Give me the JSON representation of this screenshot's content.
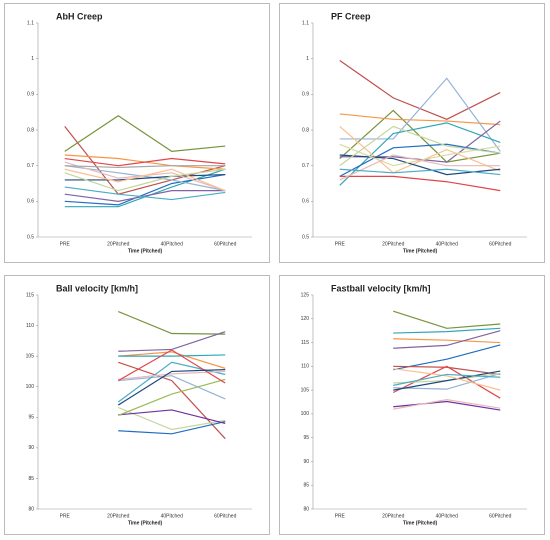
{
  "chart_data": [
    {
      "type": "line",
      "title": "AbH Creep",
      "x_label": "Time (Pitched)",
      "categories": [
        "PRE",
        "20Pitched",
        "40Pitched",
        "60Pitched"
      ],
      "ylim": [
        0.5,
        1.1
      ],
      "yticks": [
        0.5,
        0.6,
        0.7,
        0.8,
        0.9,
        1,
        1.1
      ],
      "grid": false,
      "series": [
        {
          "color": "#C0504D",
          "values": [
            0.81,
            0.62,
            0.66,
            0.7
          ]
        },
        {
          "color": "#77933C",
          "values": [
            0.74,
            0.84,
            0.74,
            0.755
          ]
        },
        {
          "color": "#F79646",
          "values": [
            0.73,
            0.72,
            0.7,
            0.69
          ]
        },
        {
          "color": "#E0464A",
          "values": [
            0.72,
            0.7,
            0.72,
            0.705
          ]
        },
        {
          "color": "#31A6B8",
          "values": [
            0.585,
            0.585,
            0.64,
            0.69
          ]
        },
        {
          "color": "#1F6FBF",
          "values": [
            0.6,
            0.59,
            0.65,
            0.675
          ]
        },
        {
          "color": "#8064A2",
          "values": [
            0.62,
            0.6,
            0.63,
            0.63
          ]
        },
        {
          "color": "#4BACC6",
          "values": [
            0.64,
            0.62,
            0.605,
            0.625
          ]
        },
        {
          "color": "#95B3D7",
          "values": [
            0.7,
            0.68,
            0.66,
            0.63
          ]
        },
        {
          "color": "#1F497D",
          "values": [
            0.66,
            0.66,
            0.67,
            0.675
          ]
        },
        {
          "color": "#E6B9B8",
          "values": [
            0.71,
            0.665,
            0.68,
            0.63
          ]
        },
        {
          "color": "#C3D69B",
          "values": [
            0.68,
            0.63,
            0.67,
            0.69
          ]
        },
        {
          "color": "#FAC090",
          "values": [
            0.69,
            0.655,
            0.69,
            0.63
          ]
        },
        {
          "color": "#A6A6A6",
          "values": [
            0.7,
            0.695,
            0.7,
            0.7
          ]
        }
      ]
    },
    {
      "type": "line",
      "title": "PF Creep",
      "x_label": "Time (Pitched)",
      "categories": [
        "PRE",
        "20Pitched",
        "40Pitched",
        "60Pitched"
      ],
      "ylim": [
        0.5,
        1.1
      ],
      "yticks": [
        0.5,
        0.6,
        0.7,
        0.8,
        0.9,
        1,
        1.1
      ],
      "grid": false,
      "series": [
        {
          "color": "#C0504D",
          "values": [
            0.995,
            0.89,
            0.83,
            0.905
          ]
        },
        {
          "color": "#77933C",
          "values": [
            0.72,
            0.855,
            0.71,
            0.735
          ]
        },
        {
          "color": "#F79646",
          "values": [
            0.845,
            0.83,
            0.825,
            0.815
          ]
        },
        {
          "color": "#95B3D7",
          "values": [
            0.775,
            0.775,
            0.945,
            0.74
          ]
        },
        {
          "color": "#31A6B8",
          "values": [
            0.645,
            0.79,
            0.82,
            0.765
          ]
        },
        {
          "color": "#1F6FBF",
          "values": [
            0.67,
            0.75,
            0.76,
            0.735
          ]
        },
        {
          "color": "#8064A2",
          "values": [
            0.725,
            0.725,
            0.71,
            0.825
          ]
        },
        {
          "color": "#FAC090",
          "values": [
            0.81,
            0.68,
            0.745,
            0.685
          ]
        },
        {
          "color": "#E0464A",
          "values": [
            0.67,
            0.67,
            0.655,
            0.63
          ]
        },
        {
          "color": "#1F497D",
          "values": [
            0.73,
            0.72,
            0.675,
            0.69
          ]
        },
        {
          "color": "#D9D9A0",
          "values": [
            0.76,
            0.7,
            0.73,
            0.755
          ]
        },
        {
          "color": "#E6B9B8",
          "values": [
            0.66,
            0.73,
            0.7,
            0.7
          ]
        },
        {
          "color": "#4BACC6",
          "values": [
            0.69,
            0.68,
            0.69,
            0.675
          ]
        },
        {
          "color": "#C3D69B",
          "values": [
            0.7,
            0.81,
            0.755,
            0.735
          ]
        }
      ]
    },
    {
      "type": "line",
      "title": "Ball velocity [km/h]",
      "x_label": "Time (Pitched)",
      "categories": [
        "PRE",
        "20Pitched",
        "40Pitched",
        "60Pitched"
      ],
      "ylim": [
        80,
        115
      ],
      "yticks": [
        80,
        85,
        90,
        95,
        100,
        105,
        110,
        115
      ],
      "grid": false,
      "series": [
        {
          "color": "#77933C",
          "values": [
            null,
            112.3,
            108.7,
            108.6
          ]
        },
        {
          "color": "#8064A2",
          "values": [
            null,
            105.8,
            106.1,
            109
          ]
        },
        {
          "color": "#F79646",
          "values": [
            null,
            105,
            105.7,
            103
          ]
        },
        {
          "color": "#C0504D",
          "values": [
            null,
            104,
            101,
            91.5
          ]
        },
        {
          "color": "#31A6B8",
          "values": [
            null,
            105,
            105,
            105.2
          ]
        },
        {
          "color": "#95B3D7",
          "values": [
            null,
            101,
            101.8,
            98
          ]
        },
        {
          "color": "#C3D69B",
          "values": [
            null,
            96.6,
            93,
            94.5
          ]
        },
        {
          "color": "#1F6FBF",
          "values": [
            null,
            92.8,
            92.3,
            94.3
          ]
        },
        {
          "color": "#7030A0",
          "values": [
            null,
            95.4,
            96.2,
            94
          ]
        },
        {
          "color": "#4BACC6",
          "values": [
            null,
            97.5,
            104,
            102
          ]
        },
        {
          "color": "#9BBB59",
          "values": [
            null,
            95.3,
            98.8,
            101.2
          ]
        },
        {
          "color": "#E6B9B8",
          "values": [
            null,
            101.2,
            102.1,
            102.5
          ]
        },
        {
          "color": "#E0464A",
          "values": [
            null,
            101,
            106,
            100.6
          ]
        },
        {
          "color": "#1F497D",
          "values": [
            null,
            97,
            102.5,
            102.8
          ]
        }
      ]
    },
    {
      "type": "line",
      "title": "Fastball velocity [km/h]",
      "x_label": "Time (Pitched)",
      "categories": [
        "PRE",
        "20Pitched",
        "40Pitched",
        "60Pitched"
      ],
      "ylim": [
        80,
        125
      ],
      "yticks": [
        80,
        85,
        90,
        95,
        100,
        105,
        110,
        115,
        120,
        125
      ],
      "grid": false,
      "series": [
        {
          "color": "#77933C",
          "values": [
            null,
            121.6,
            118,
            118.9
          ]
        },
        {
          "color": "#31A6B8",
          "values": [
            null,
            117,
            117.3,
            118
          ]
        },
        {
          "color": "#F79646",
          "values": [
            null,
            115.8,
            115.5,
            115
          ]
        },
        {
          "color": "#1F6FBF",
          "values": [
            null,
            109.3,
            111.5,
            114.5
          ]
        },
        {
          "color": "#8064A2",
          "values": [
            null,
            113.8,
            114.4,
            117.5
          ]
        },
        {
          "color": "#C0504D",
          "values": [
            null,
            110,
            109.8,
            108.3
          ]
        },
        {
          "color": "#E0464A",
          "values": [
            null,
            104.5,
            110,
            103.3
          ]
        },
        {
          "color": "#95B3D7",
          "values": [
            null,
            105.5,
            105.2,
            108.5
          ]
        },
        {
          "color": "#C3D69B",
          "values": [
            null,
            106.5,
            107,
            108.5
          ]
        },
        {
          "color": "#1F497D",
          "values": [
            null,
            105,
            107,
            109
          ]
        },
        {
          "color": "#7030A0",
          "values": [
            null,
            101.5,
            102.6,
            100.8
          ]
        },
        {
          "color": "#E6B9B8",
          "values": [
            null,
            101,
            103,
            101.2
          ]
        },
        {
          "color": "#FAC090",
          "values": [
            null,
            109.5,
            108,
            105
          ]
        },
        {
          "color": "#4BACC6",
          "values": [
            null,
            106,
            108.3,
            107.7
          ]
        }
      ]
    }
  ]
}
